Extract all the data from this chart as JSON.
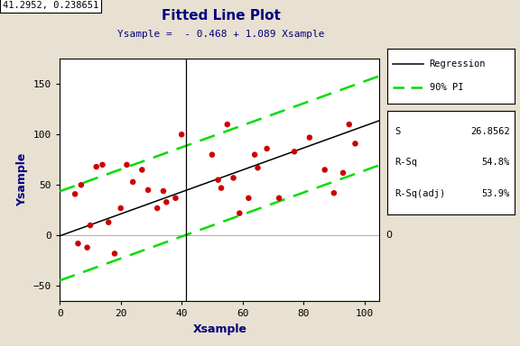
{
  "title": "Fitted Line Plot",
  "subtitle": "Ysample =  - 0.468 + 1.089 Xsample",
  "xlabel": "Xsample",
  "ylabel": "Ysample",
  "intercept": -0.468,
  "slope": 1.089,
  "S": 26.8562,
  "R_sq": "54.8%",
  "R_sq_adj": "53.9%",
  "xlim": [
    0,
    105
  ],
  "ylim": [
    -65,
    175
  ],
  "xticks": [
    0,
    20,
    40,
    60,
    80,
    100
  ],
  "yticks": [
    -50,
    0,
    50,
    100,
    150
  ],
  "crosshair_x": 41.2952,
  "crosshair_y": 0.238651,
  "bg_color": "#e8e0d0",
  "plot_bg": "#ffffff",
  "scatter_x": [
    5,
    6,
    7,
    9,
    10,
    12,
    14,
    16,
    18,
    20,
    22,
    24,
    27,
    29,
    32,
    34,
    35,
    38,
    40,
    50,
    52,
    53,
    55,
    57,
    59,
    62,
    64,
    65,
    68,
    72,
    77,
    82,
    87,
    90,
    93,
    95,
    97
  ],
  "scatter_y": [
    41,
    -8,
    50,
    -12,
    10,
    68,
    70,
    13,
    -18,
    27,
    70,
    53,
    65,
    45,
    27,
    44,
    33,
    37,
    100,
    80,
    55,
    47,
    110,
    57,
    22,
    37,
    80,
    67,
    86,
    37,
    83,
    97,
    65,
    42,
    62,
    110,
    91
  ],
  "pi_multiplier": 1.645
}
